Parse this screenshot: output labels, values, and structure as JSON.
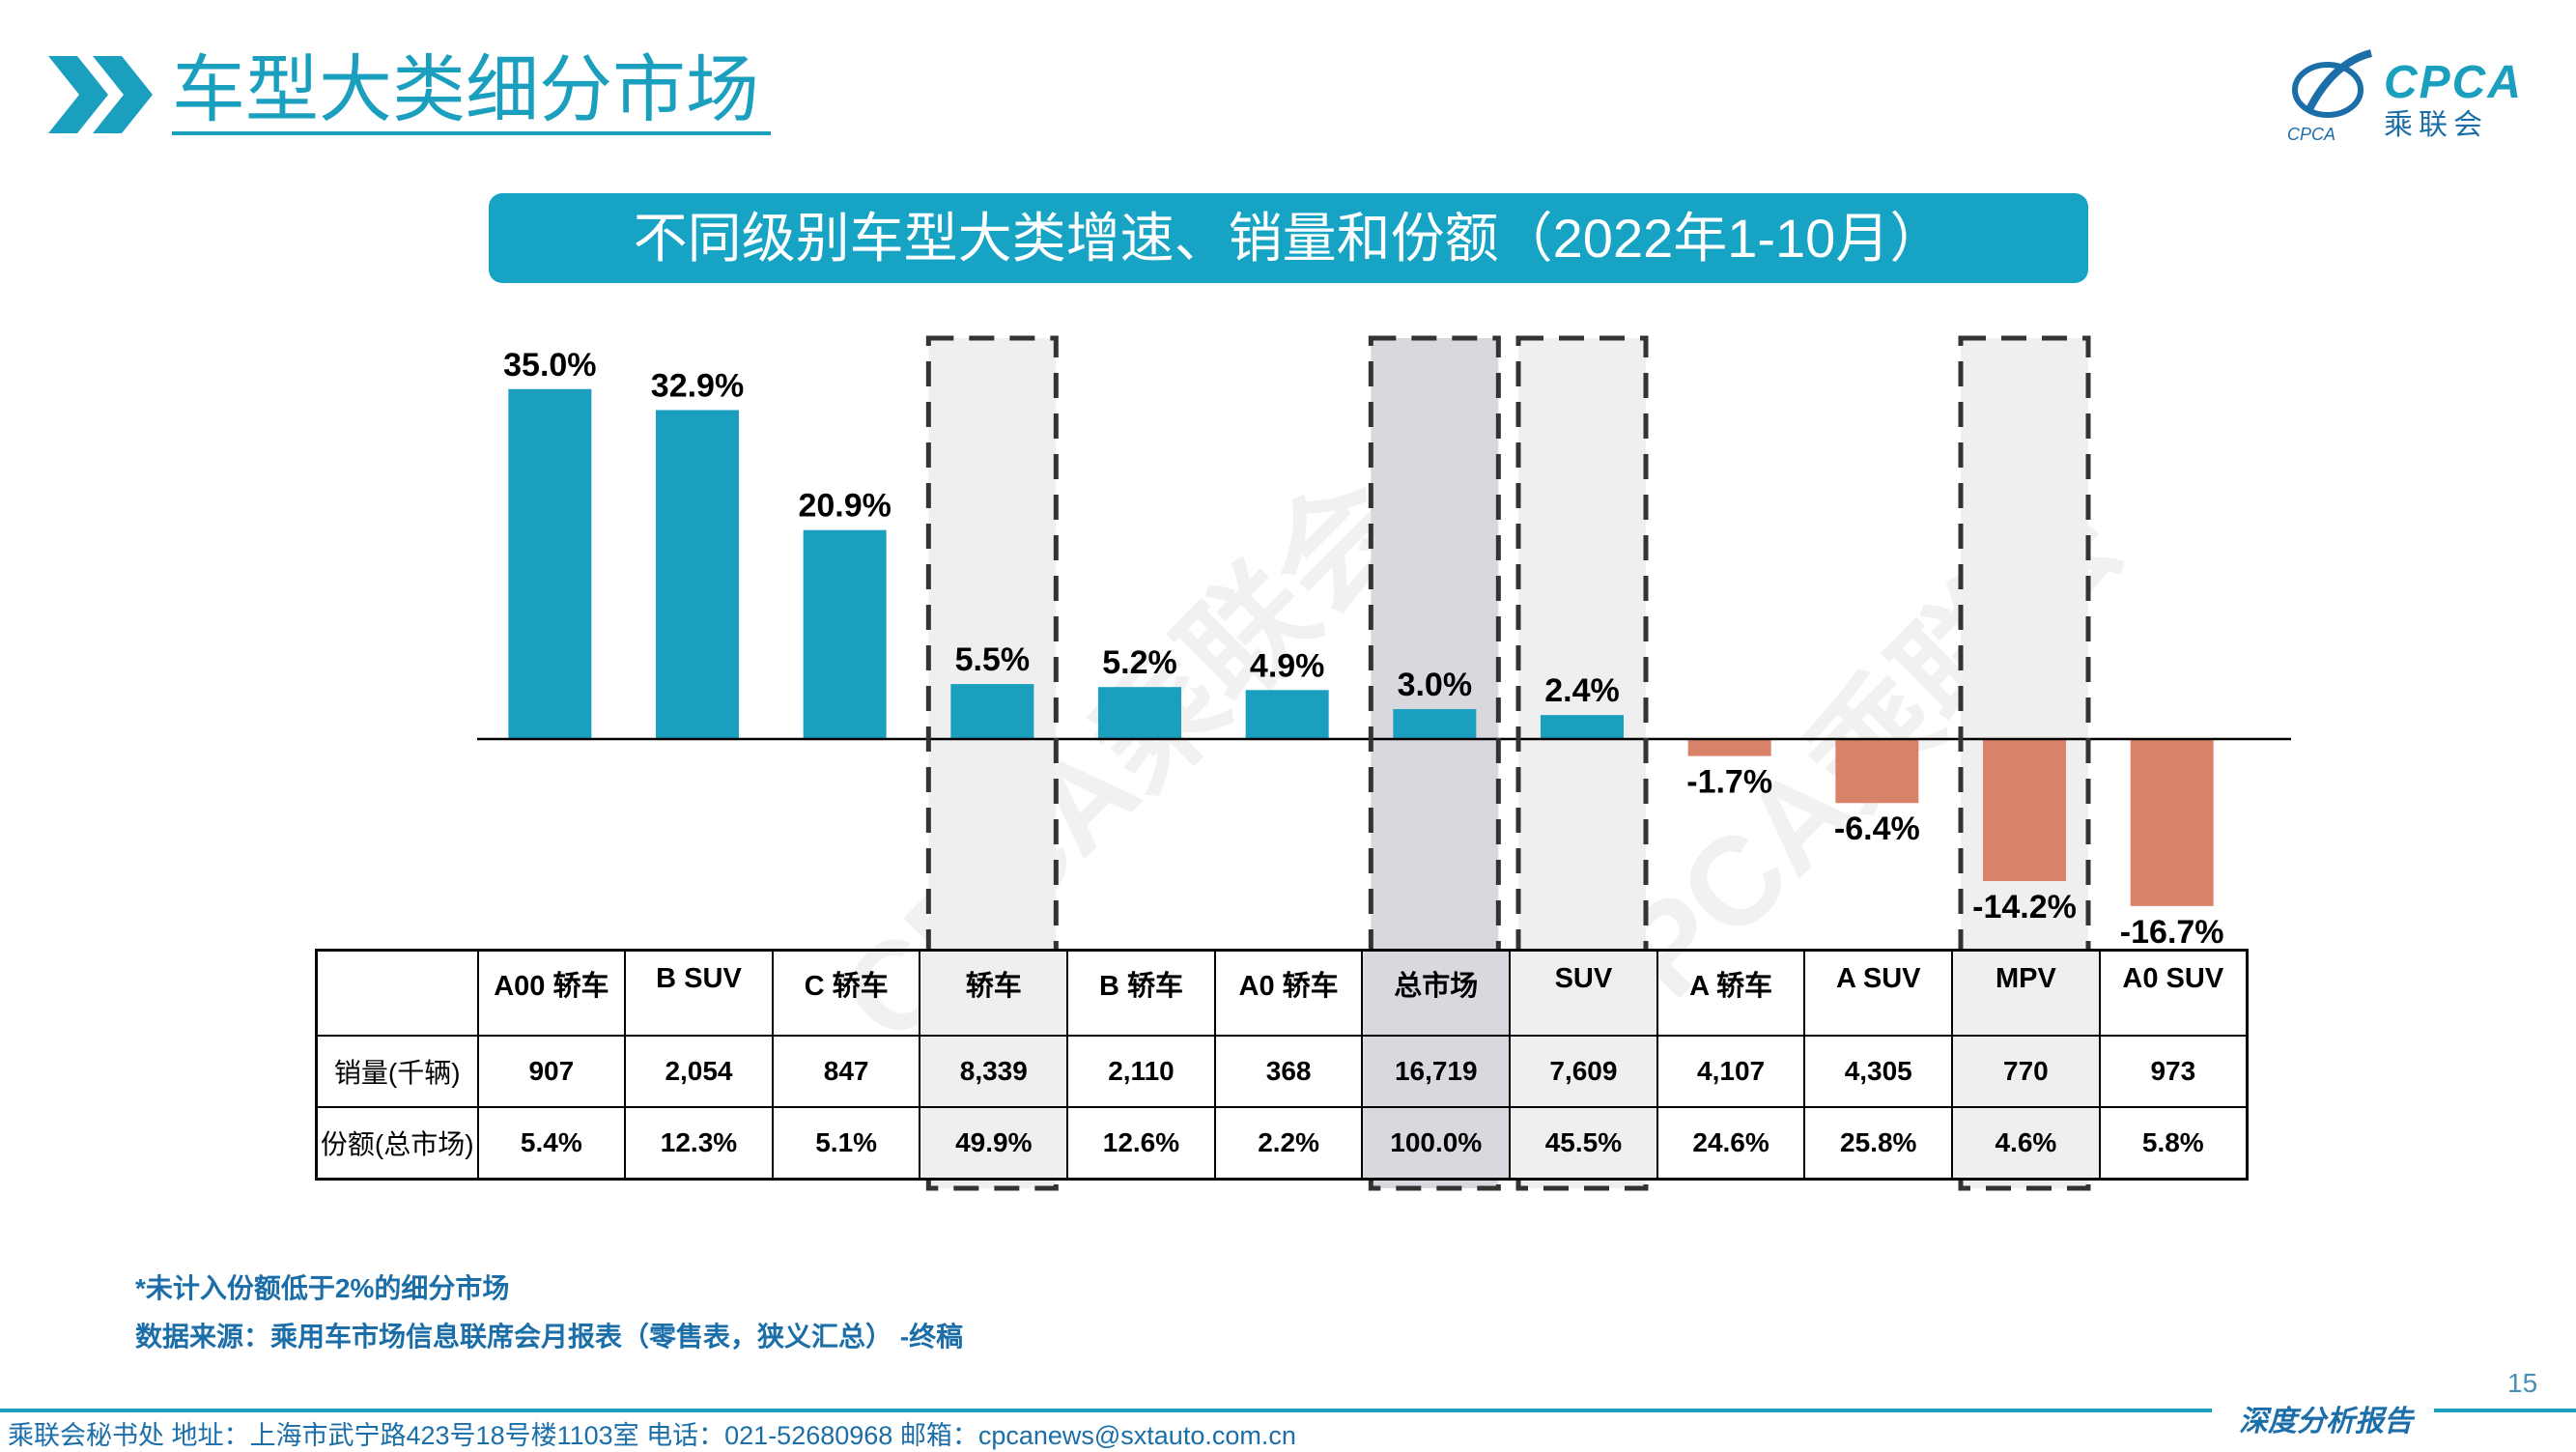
{
  "header": {
    "title": "车型大类细分市场",
    "logo_text": "CPCA",
    "logo_sub": "乘联会",
    "logo_small": "CPCA"
  },
  "chart_data": {
    "type": "bar",
    "title": "不同级别车型大类增速、销量和份额（2022年1-10月）",
    "categories": [
      "A00 轿车",
      "B SUV",
      "C 轿车",
      "轿车",
      "B 轿车",
      "A0 轿车",
      "总市场",
      "SUV",
      "A 轿车",
      "A SUV",
      "MPV",
      "A0 SUV"
    ],
    "values": [
      35.0,
      32.9,
      20.9,
      5.5,
      5.2,
      4.9,
      3.0,
      2.4,
      -1.7,
      -6.4,
      -14.2,
      -16.7
    ],
    "labels": [
      "35.0%",
      "32.9%",
      "20.9%",
      "5.5%",
      "5.2%",
      "4.9%",
      "3.0%",
      "2.4%",
      "-1.7%",
      "-6.4%",
      "-14.2%",
      "-16.7%"
    ],
    "ylim": [
      -17,
      36
    ],
    "highlighted": [
      "轿车",
      "总市场",
      "SUV",
      "MPV"
    ],
    "colors": {
      "positive": "#1b9fbf",
      "negative": "#d9826a",
      "highlight": "#efefef",
      "total_highlight": "#d8d8de"
    },
    "xlabel": "",
    "ylabel": ""
  },
  "table": {
    "rows": [
      {
        "label": "销量(千辆)",
        "values": [
          "907",
          "2,054",
          "847",
          "8,339",
          "2,110",
          "368",
          "16,719",
          "7,609",
          "4,107",
          "4,305",
          "770",
          "973"
        ]
      },
      {
        "label": "份额(总市场)",
        "values": [
          "5.4%",
          "12.3%",
          "5.1%",
          "49.9%",
          "12.6%",
          "2.2%",
          "100.0%",
          "45.5%",
          "24.6%",
          "25.8%",
          "4.6%",
          "5.8%"
        ]
      }
    ]
  },
  "notes": {
    "footnote": "*未计入份额低于2%的细分市场",
    "source": "数据来源：乘用车市场信息联席会月报表（零售表，狭义汇总） -终稿"
  },
  "page_number": "15",
  "footer": {
    "text": "乘联会秘书处   地址：上海市武宁路423号18号楼1103室  电话：021-52680968   邮箱：cpcanews@sxtauto.com.cn",
    "report": "深度分析报告"
  },
  "watermark": "CPCA乘联会"
}
